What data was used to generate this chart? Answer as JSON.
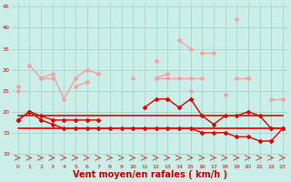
{
  "x": [
    0,
    1,
    2,
    3,
    4,
    5,
    6,
    7,
    8,
    9,
    10,
    11,
    12,
    13,
    14,
    15,
    16,
    17,
    18,
    19,
    20,
    21,
    22,
    23
  ],
  "series": [
    {
      "color": "#f4a0a0",
      "lw": 1.0,
      "marker": "D",
      "ms": 2.0,
      "values": [
        26,
        null,
        null,
        null,
        null,
        null,
        null,
        null,
        null,
        null,
        28,
        null,
        32,
        null,
        37,
        35,
        null,
        null,
        null,
        42,
        null,
        null,
        null,
        null
      ]
    },
    {
      "color": "#f4a0a0",
      "lw": 1.0,
      "marker": "D",
      "ms": 2.0,
      "values": [
        null,
        31,
        28,
        29,
        23,
        28,
        30,
        29,
        null,
        null,
        null,
        null,
        28,
        29,
        null,
        null,
        34,
        34,
        null,
        null,
        28,
        null,
        23,
        23
      ]
    },
    {
      "color": "#f4a0a0",
      "lw": 1.0,
      "marker": "D",
      "ms": 2.0,
      "values": [
        null,
        null,
        28,
        28,
        null,
        26,
        27,
        null,
        null,
        null,
        null,
        null,
        28,
        28,
        28,
        28,
        28,
        null,
        null,
        28,
        28,
        null,
        null,
        null
      ]
    },
    {
      "color": "#f4a0a0",
      "lw": 1.0,
      "marker": "D",
      "ms": 2.0,
      "values": [
        null,
        null,
        null,
        null,
        null,
        null,
        null,
        null,
        null,
        null,
        null,
        null,
        null,
        null,
        null,
        null,
        null,
        null,
        null,
        null,
        null,
        null,
        null,
        null
      ]
    },
    {
      "color": "#f4a0a0",
      "lw": 1.0,
      "marker": "D",
      "ms": 2.0,
      "values": [
        25,
        null,
        null,
        null,
        null,
        null,
        null,
        null,
        null,
        null,
        null,
        null,
        null,
        null,
        null,
        25,
        null,
        null,
        24,
        null,
        null,
        null,
        null,
        null
      ]
    },
    {
      "color": "#dd0000",
      "lw": 1.0,
      "marker": "D",
      "ms": 2.0,
      "values": [
        18,
        20,
        19,
        18,
        18,
        18,
        18,
        18,
        null,
        null,
        null,
        21,
        23,
        23,
        21,
        23,
        19,
        17,
        19,
        19,
        20,
        19,
        16,
        16
      ]
    },
    {
      "color": "#dd0000",
      "lw": 1.0,
      "marker": "D",
      "ms": 2.0,
      "values": [
        18,
        20,
        18,
        17,
        16,
        16,
        16,
        16,
        16,
        16,
        16,
        16,
        16,
        16,
        16,
        16,
        15,
        15,
        15,
        14,
        14,
        13,
        13,
        16
      ]
    },
    {
      "color": "#dd0000",
      "lw": 1.2,
      "marker": null,
      "ms": 0,
      "values": [
        19,
        19,
        19,
        19,
        19,
        19,
        19,
        19,
        19,
        19,
        19,
        19,
        19,
        19,
        19,
        19,
        19,
        19,
        19,
        19,
        19,
        19,
        19,
        19
      ]
    },
    {
      "color": "#dd0000",
      "lw": 1.2,
      "marker": null,
      "ms": 0,
      "values": [
        16,
        16,
        16,
        16,
        16,
        16,
        16,
        16,
        16,
        16,
        16,
        16,
        16,
        16,
        16,
        16,
        16,
        16,
        16,
        16,
        16,
        16,
        16,
        16
      ]
    }
  ],
  "xlabel": "Vent moyen/en rafales ( km/h )",
  "xlabel_color": "#cc0000",
  "xlabel_fontsize": 7,
  "bg_color": "#cceee8",
  "grid_color": "#aad8d0",
  "tick_color": "#cc0000",
  "ylim": [
    8,
    46
  ],
  "yticks": [
    10,
    15,
    20,
    25,
    30,
    35,
    40,
    45
  ],
  "xlim": [
    -0.5,
    23.5
  ],
  "xticks": [
    0,
    1,
    2,
    3,
    4,
    5,
    6,
    7,
    8,
    9,
    10,
    11,
    12,
    13,
    14,
    15,
    16,
    17,
    18,
    19,
    20,
    21,
    22,
    23
  ]
}
